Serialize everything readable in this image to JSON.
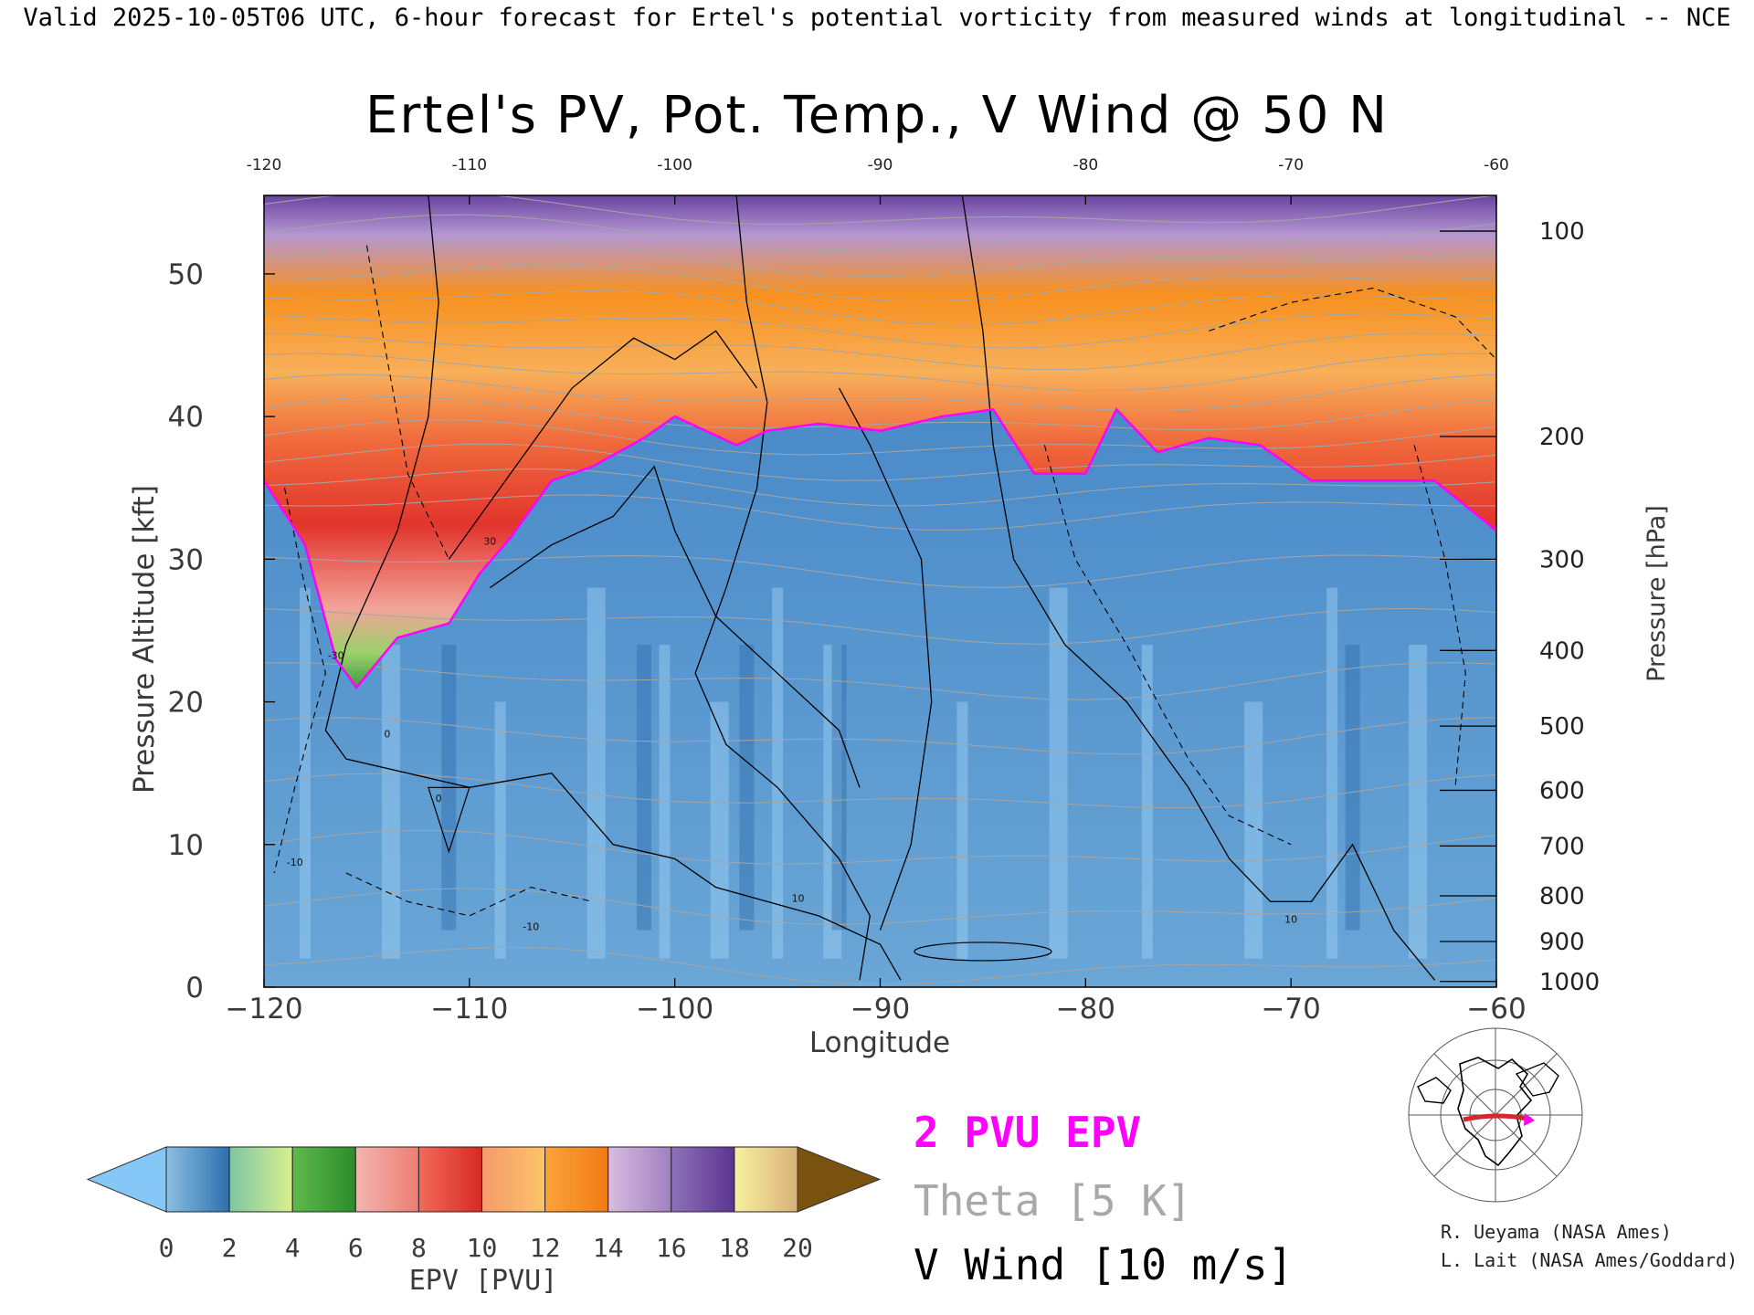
{
  "header": {
    "top_caption": "Valid 2025-10-05T06 UTC, 6-hour forecast for Ertel's potential vorticity from measured winds at longitudinal -- NCE"
  },
  "chart_data": {
    "type": "heatmap",
    "title": "Ertel's PV, Pot. Temp., V Wind @ 50 N",
    "xlabel": "Longitude",
    "ylabel": "Pressure Altitude [kft]",
    "y2label": "Pressure [hPa]",
    "xlim": [
      -120,
      -60
    ],
    "ylim": [
      0,
      55.5
    ],
    "x_ticks": [
      -120,
      -110,
      -100,
      -90,
      -80,
      -70,
      -60
    ],
    "x_tick_labels": [
      "−120",
      "−110",
      "−100",
      "−90",
      "−80",
      "−70",
      "−60"
    ],
    "x_ticks_top": [
      "-120",
      "-110",
      "-100",
      "-90",
      "-80",
      "-70",
      "-60"
    ],
    "y_ticks": [
      0,
      10,
      20,
      30,
      40,
      50
    ],
    "pressure_ticks": [
      {
        "hPa": "100",
        "kft": 53.0
      },
      {
        "hPa": "200",
        "kft": 38.6
      },
      {
        "hPa": "300",
        "kft": 30.0
      },
      {
        "hPa": "400",
        "kft": 23.6
      },
      {
        "hPa": "500",
        "kft": 18.3
      },
      {
        "hPa": "600",
        "kft": 13.8
      },
      {
        "hPa": "700",
        "kft": 9.9
      },
      {
        "hPa": "800",
        "kft": 6.4
      },
      {
        "hPa": "900",
        "kft": 3.2
      },
      {
        "hPa": "1000",
        "kft": 0.4
      }
    ],
    "grid": false,
    "tropopause_kft": [
      {
        "lon": -120,
        "kft": 35.5
      },
      {
        "lon": -118,
        "kft": 31.0
      },
      {
        "lon": -116.5,
        "kft": 23.0
      },
      {
        "lon": -115.5,
        "kft": 21.0
      },
      {
        "lon": -113.5,
        "kft": 24.5
      },
      {
        "lon": -111,
        "kft": 25.5
      },
      {
        "lon": -109.5,
        "kft": 29.0
      },
      {
        "lon": -108,
        "kft": 31.5
      },
      {
        "lon": -106,
        "kft": 35.5
      },
      {
        "lon": -104,
        "kft": 36.5
      },
      {
        "lon": -101.5,
        "kft": 38.5
      },
      {
        "lon": -100,
        "kft": 40.0
      },
      {
        "lon": -97,
        "kft": 38.0
      },
      {
        "lon": -95.5,
        "kft": 39.0
      },
      {
        "lon": -93,
        "kft": 39.5
      },
      {
        "lon": -90,
        "kft": 39.0
      },
      {
        "lon": -87,
        "kft": 40.0
      },
      {
        "lon": -84.5,
        "kft": 40.5
      },
      {
        "lon": -82.5,
        "kft": 36.0
      },
      {
        "lon": -80,
        "kft": 36.0
      },
      {
        "lon": -78.5,
        "kft": 40.5
      },
      {
        "lon": -76.5,
        "kft": 37.5
      },
      {
        "lon": -74,
        "kft": 38.5
      },
      {
        "lon": -71.5,
        "kft": 38.0
      },
      {
        "lon": -69,
        "kft": 35.5
      },
      {
        "lon": -66,
        "kft": 35.5
      },
      {
        "lon": -63,
        "kft": 35.5
      },
      {
        "lon": -60,
        "kft": 32.0
      }
    ],
    "contour_label_values": [
      "0",
      "10",
      "-10",
      "-30",
      "30"
    ],
    "colorbar": {
      "label": "EPV [PVU]",
      "ticks": [
        "0",
        "2",
        "4",
        "6",
        "8",
        "10",
        "12",
        "14",
        "16",
        "18",
        "20"
      ],
      "under_color": "#85c8f7",
      "over_color": "#7a5210",
      "bins": [
        {
          "from": 0,
          "to": 2,
          "c1": "#8cbfe2",
          "c2": "#2c6fae"
        },
        {
          "from": 2,
          "to": 4,
          "c1": "#7dc6a3",
          "c2": "#d9ef8f"
        },
        {
          "from": 4,
          "to": 6,
          "c1": "#5fba4c",
          "c2": "#2c8c2c"
        },
        {
          "from": 6,
          "to": 8,
          "c1": "#f2b6b0",
          "c2": "#ec7d74"
        },
        {
          "from": 8,
          "to": 10,
          "c1": "#f26a5a",
          "c2": "#d62a24"
        },
        {
          "from": 10,
          "to": 12,
          "c1": "#f59a6c",
          "c2": "#fdc36a"
        },
        {
          "from": 12,
          "to": 14,
          "c1": "#fca33a",
          "c2": "#f07a14"
        },
        {
          "from": 14,
          "to": 16,
          "c1": "#d9bde0",
          "c2": "#a07fc0"
        },
        {
          "from": 16,
          "to": 18,
          "c1": "#8e72b8",
          "c2": "#5b3590"
        },
        {
          "from": 18,
          "to": 20,
          "c1": "#f7f0a0",
          "c2": "#d9b27a"
        }
      ]
    }
  },
  "legend": {
    "pv_line": "2 PVU EPV",
    "theta_line": "Theta [5 K]",
    "wind_line": "V Wind [10 m/s]",
    "colors": {
      "pv": "#ff00ff",
      "theta": "#a0a0a0",
      "wind": "#000000"
    }
  },
  "inset_map": {
    "icon": "polar-map-icon"
  },
  "credits": {
    "line1": "R. Ueyama (NASA Ames)",
    "line2": "L. Lait (NASA Ames/Goddard)"
  }
}
